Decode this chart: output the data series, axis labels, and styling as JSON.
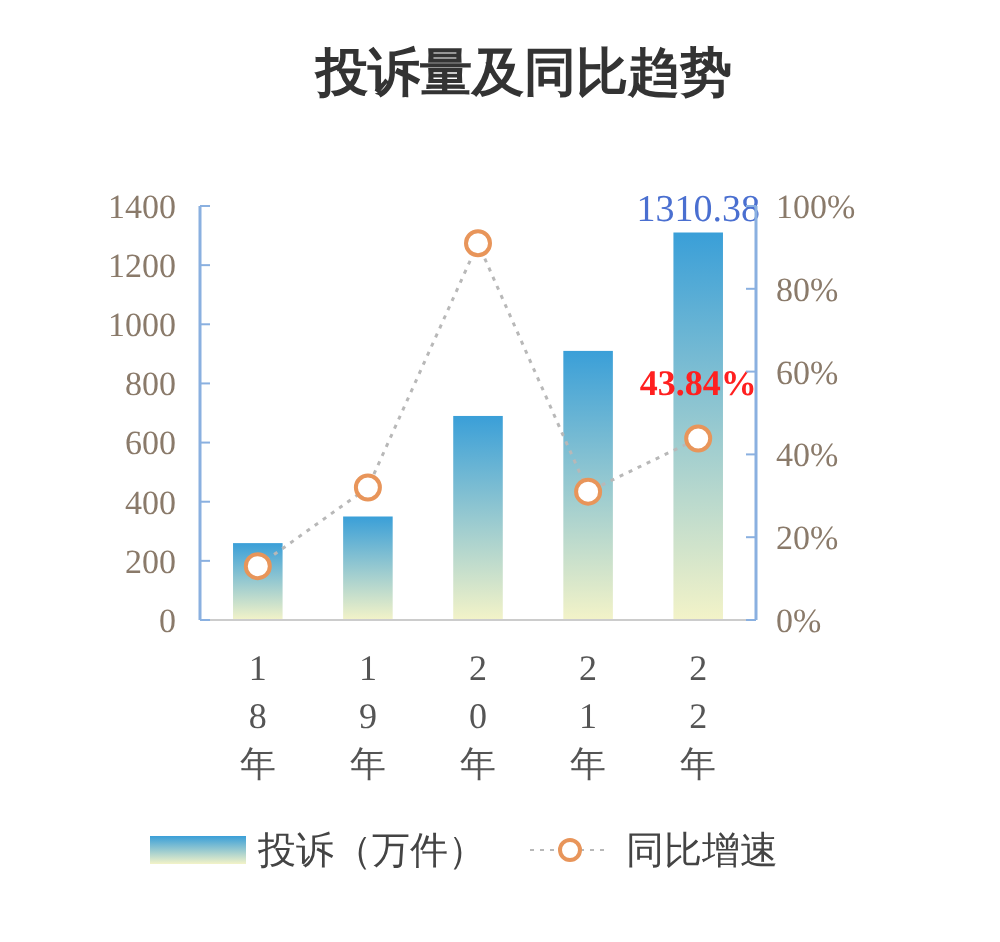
{
  "chart_data": {
    "type": "bar",
    "title": "投诉量及同比趋势",
    "categories": [
      "18年",
      "19年",
      "20年",
      "21年",
      "22年"
    ],
    "series": [
      {
        "name": "投诉（万件）",
        "color": "#3a9fd8",
        "values": [
          260,
          350,
          690,
          910,
          1310.38
        ],
        "value_labels": [
          null,
          null,
          null,
          null,
          "1310.38"
        ]
      },
      {
        "name": "同比增速",
        "type": "line",
        "axis": "y2",
        "color": "#e8955a",
        "marker": "circle",
        "line_style": "dotted",
        "values": [
          13,
          32,
          91,
          31,
          43.84
        ],
        "value_labels": [
          null,
          null,
          null,
          null,
          "43.84%"
        ]
      }
    ],
    "ylim": [
      0,
      1400
    ],
    "yticks": [
      0,
      200,
      400,
      600,
      800,
      1000,
      1200,
      1400
    ],
    "y2lim": [
      0,
      100
    ],
    "y2ticks": [
      {
        "value": 0,
        "label": "0%"
      },
      {
        "value": 20,
        "label": "20%"
      },
      {
        "value": 40,
        "label": "40%"
      },
      {
        "value": 60,
        "label": "60%"
      },
      {
        "value": 80,
        "label": "80%"
      },
      {
        "value": 100,
        "label": "100%"
      }
    ],
    "grid": false,
    "legend": "bottom"
  }
}
